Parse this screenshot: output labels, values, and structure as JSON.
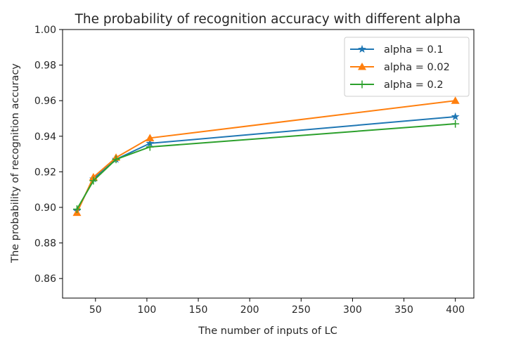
{
  "chart_data": {
    "type": "line",
    "title": "The probability of recognition accuracy with different alpha",
    "xlabel": "The number of inputs of LC",
    "ylabel": "The probability of recognition accuracy",
    "xlim": [
      18,
      418
    ],
    "ylim": [
      0.849,
      1.0
    ],
    "xticks": [
      50,
      100,
      150,
      200,
      250,
      300,
      350,
      400
    ],
    "yticks": [
      0.86,
      0.88,
      0.9,
      0.92,
      0.94,
      0.96,
      0.98,
      1.0
    ],
    "ytick_labels": [
      "0.86",
      "0.88",
      "0.90",
      "0.92",
      "0.94",
      "0.96",
      "0.98",
      "1.00"
    ],
    "grid": false,
    "legend_position": "top-right",
    "x": [
      32,
      48,
      70,
      103,
      400
    ],
    "series": [
      {
        "name": "alpha = 0.1",
        "color": "#1f77b4",
        "marker": "star",
        "values": [
          0.898,
          0.916,
          0.927,
          0.936,
          0.951
        ]
      },
      {
        "name": "alpha = 0.02",
        "color": "#ff7f0e",
        "marker": "triangle-up",
        "values": [
          0.897,
          0.917,
          0.928,
          0.939,
          0.96
        ]
      },
      {
        "name": "alpha = 0.2",
        "color": "#2ca02c",
        "marker": "plus",
        "values": [
          0.899,
          0.915,
          0.927,
          0.934,
          0.947
        ]
      }
    ]
  }
}
